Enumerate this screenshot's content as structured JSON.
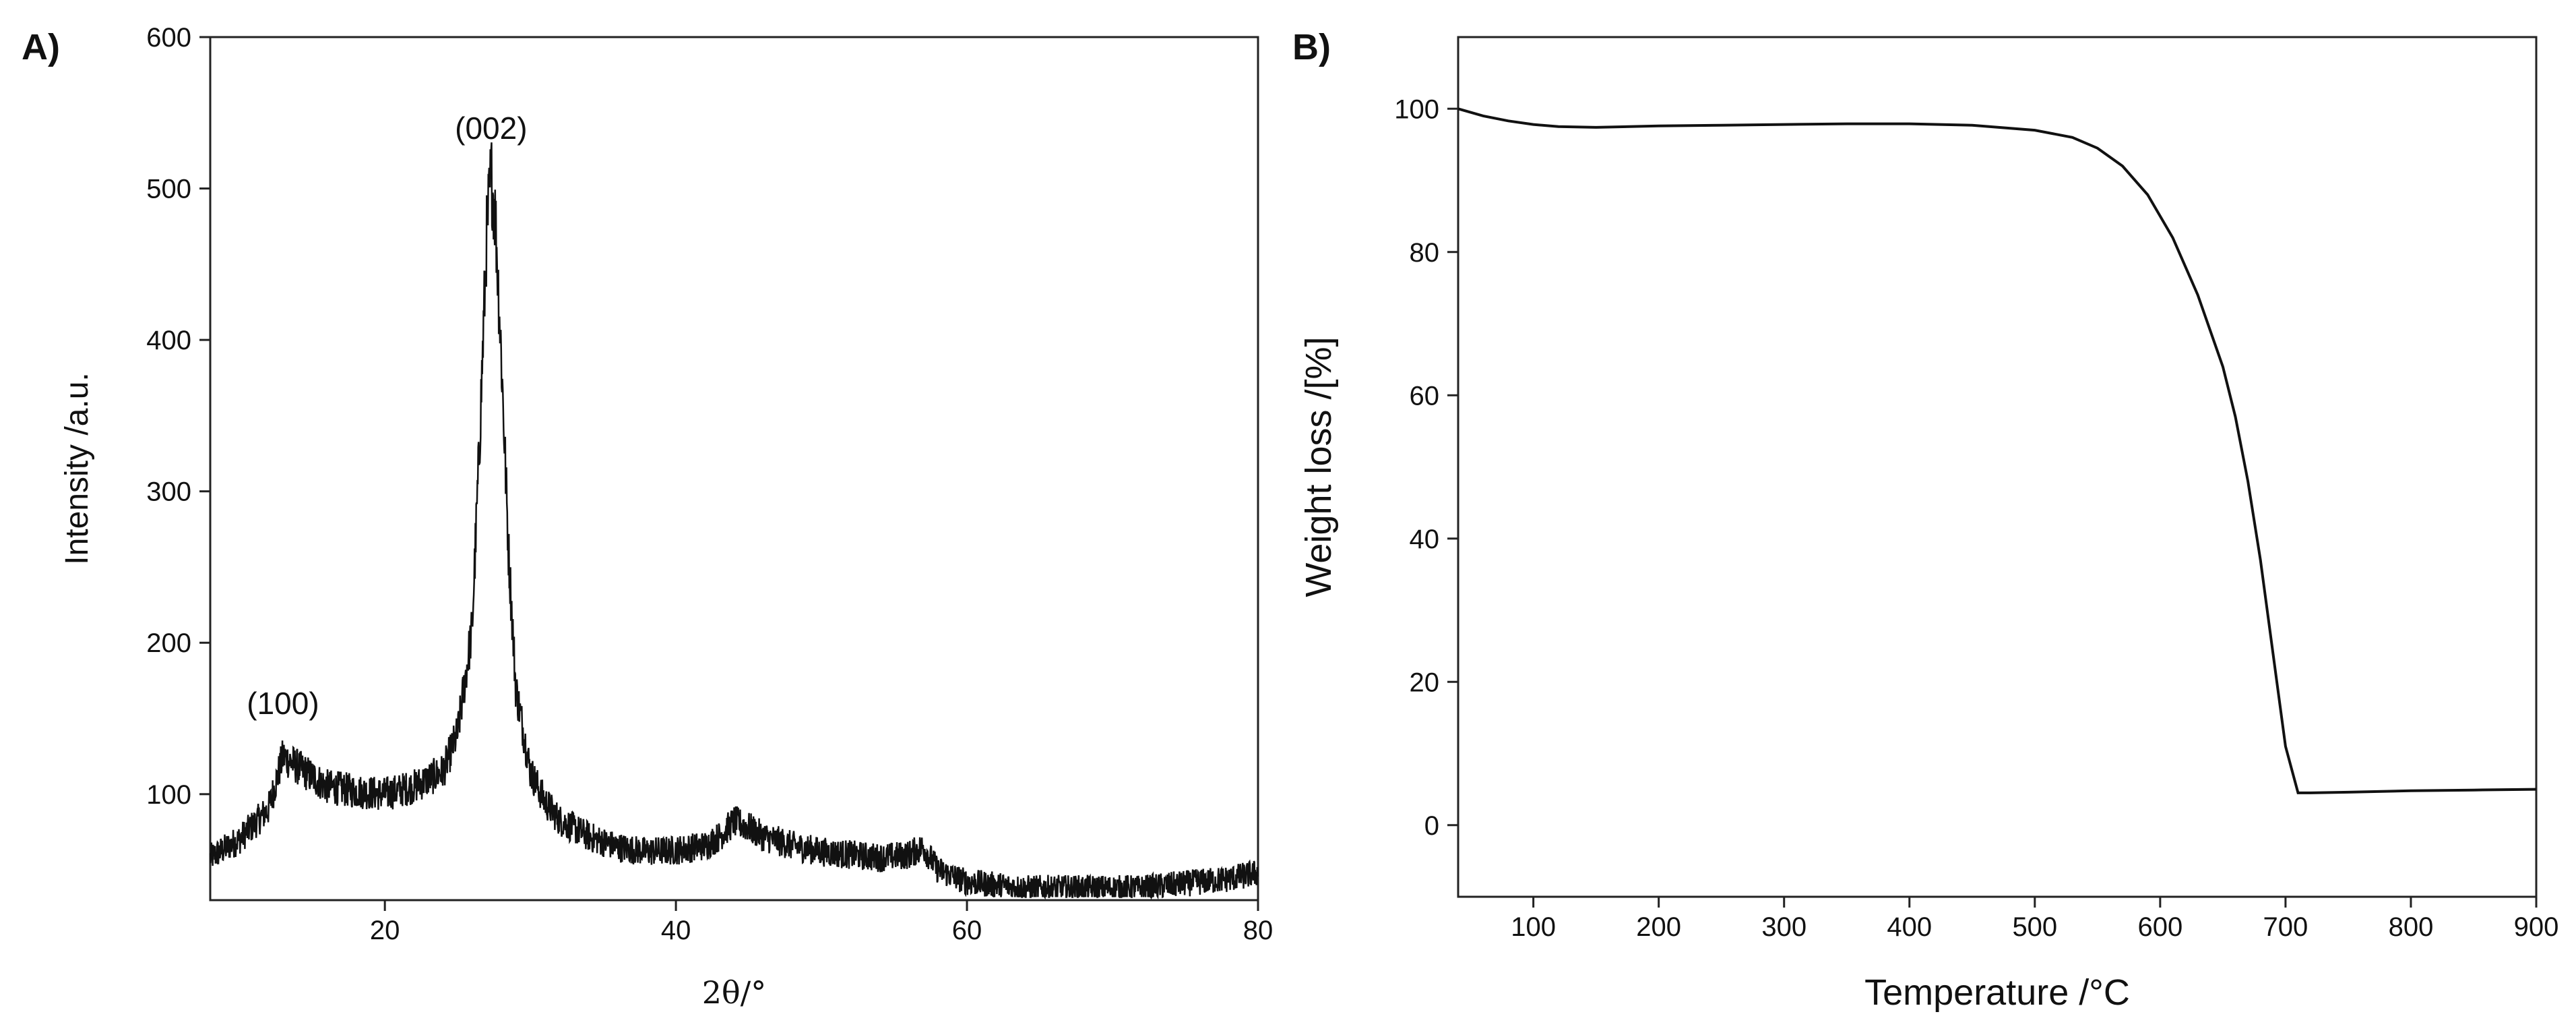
{
  "chart_data": [
    {
      "type": "line",
      "panel_label": "A)",
      "xlabel": "2θ/°",
      "ylabel": "Intensity /a.u.",
      "xlim": [
        8,
        80
      ],
      "ylim": [
        30,
        600
      ],
      "x_ticks": [
        20,
        40,
        60,
        80
      ],
      "y_ticks": [
        100,
        200,
        300,
        400,
        500,
        600
      ],
      "x_tick_labels": [
        "20",
        "40",
        "60",
        "80"
      ],
      "y_tick_labels": [
        "100",
        "200",
        "300",
        "400",
        "500",
        "600"
      ],
      "grid": false,
      "color": "#111111",
      "annotations": [
        {
          "text": "(100)",
          "x": 13.0,
          "y": 135
        },
        {
          "text": "(002)",
          "x": 27.3,
          "y": 515
        }
      ],
      "x": [
        8,
        10,
        12,
        13,
        14,
        16,
        18,
        20,
        22,
        24,
        25,
        26,
        26.5,
        27,
        27.3,
        27.6,
        28,
        28.5,
        29,
        30,
        31,
        32,
        34,
        36,
        38,
        40,
        42,
        43,
        44,
        45,
        46,
        48,
        50,
        52,
        54,
        56,
        57,
        58,
        60,
        62,
        64,
        66,
        68,
        70,
        72,
        74,
        76,
        78,
        80
      ],
      "y": [
        58,
        70,
        90,
        125,
        118,
        105,
        102,
        100,
        105,
        115,
        140,
        210,
        330,
        470,
        510,
        480,
        390,
        260,
        170,
        115,
        95,
        83,
        72,
        65,
        62,
        63,
        66,
        72,
        82,
        78,
        72,
        66,
        62,
        60,
        58,
        60,
        65,
        50,
        42,
        40,
        38,
        38,
        38,
        38,
        38,
        40,
        42,
        44,
        48
      ]
    },
    {
      "type": "line",
      "panel_label": "B)",
      "xlabel": "Temperature /°C",
      "ylabel": "Weight loss /[%]",
      "xlim": [
        40,
        900
      ],
      "ylim": [
        -10,
        110
      ],
      "x_ticks": [
        100,
        200,
        300,
        400,
        500,
        600,
        700,
        800,
        900
      ],
      "y_ticks": [
        0,
        20,
        40,
        60,
        80,
        100
      ],
      "x_tick_labels": [
        "100",
        "200",
        "300",
        "400",
        "500",
        "600",
        "700",
        "800",
        "900"
      ],
      "y_tick_labels": [
        "0",
        "20",
        "40",
        "60",
        "80",
        "100"
      ],
      "grid": false,
      "color": "#111111",
      "x": [
        40,
        60,
        80,
        100,
        120,
        150,
        200,
        250,
        300,
        350,
        400,
        450,
        500,
        530,
        550,
        570,
        590,
        610,
        630,
        650,
        660,
        670,
        680,
        690,
        700,
        710,
        720,
        750,
        800,
        850,
        900
      ],
      "y": [
        100,
        99,
        98.3,
        97.8,
        97.5,
        97.4,
        97.6,
        97.7,
        97.8,
        97.9,
        97.9,
        97.7,
        97.0,
        96.0,
        94.5,
        92.0,
        88.0,
        82.0,
        74.0,
        64.0,
        57.0,
        48.0,
        37.0,
        24.0,
        11.0,
        4.5,
        4.5,
        4.6,
        4.8,
        4.9,
        5.0
      ]
    }
  ]
}
